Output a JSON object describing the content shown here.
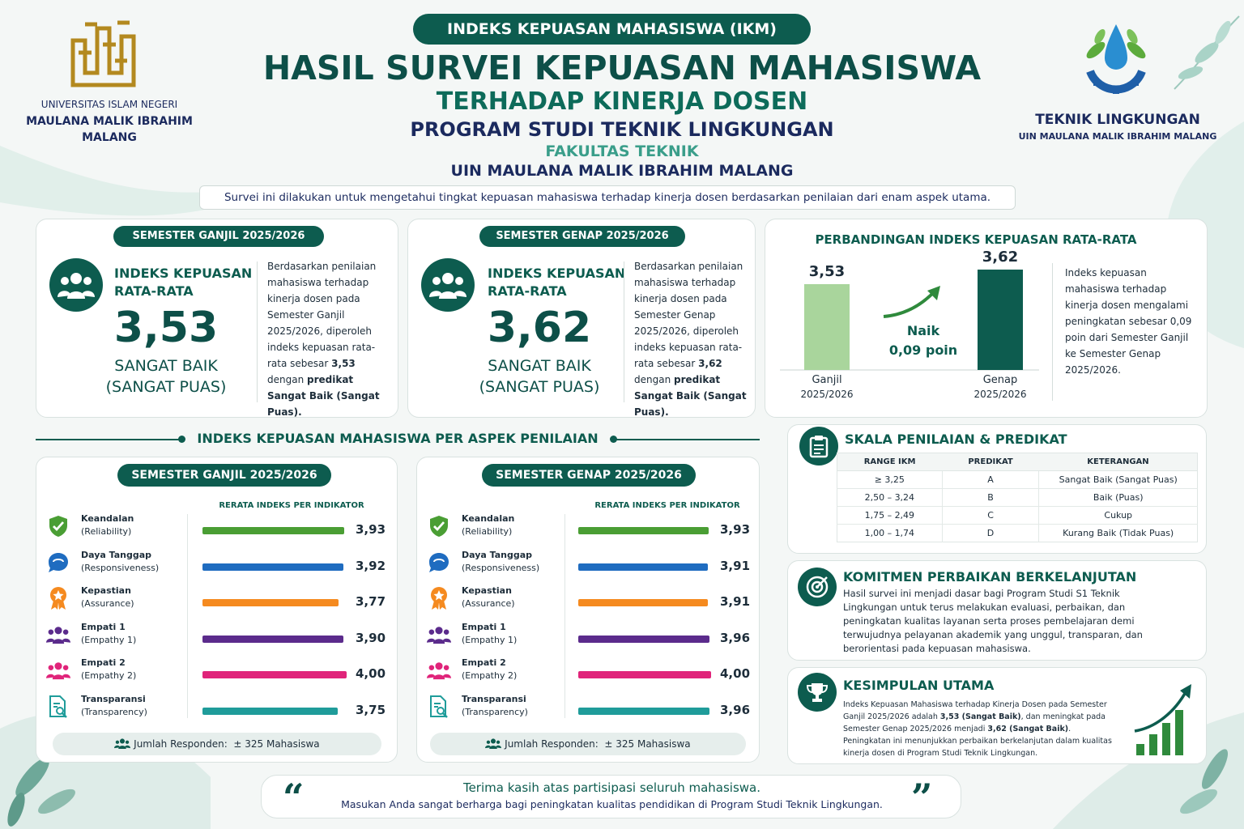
{
  "colors": {
    "primary": "#0d5c4f",
    "navy": "#1b2a5e",
    "teal_light": "#3a9e8a",
    "green": "#4a9e34",
    "blue": "#1f6cc0",
    "orange": "#f58a1f",
    "purple": "#5b2b8c",
    "pink": "#e0247a",
    "cyan": "#1f9c9a",
    "bar_ganjil": "#a9d59c"
  },
  "header": {
    "pill": "INDEKS KEPUASAN MAHASISWA (IKM)",
    "title1": "HASIL SURVEI KEPUASAN MAHASISWA",
    "title2": "TERHADAP KINERJA DOSEN",
    "title3": "PROGRAM STUDI TEKNIK LINGKUNGAN",
    "title4": "FAKULTAS TEKNIK",
    "title5": "UIN MAULANA MALIK IBRAHIM MALANG",
    "intro": "Survei ini dilakukan untuk mengetahui tingkat kepuasan mahasiswa terhadap kinerja dosen berdasarkan penilaian dari enam aspek utama."
  },
  "logo_left": {
    "line1": "UNIVERSITAS ISLAM NEGERI",
    "line2": "MAULANA MALIK IBRAHIM",
    "line3": "MALANG",
    "icon": "uin-calligraphy-logo"
  },
  "logo_right": {
    "line1": "TEKNIK LINGKUNGAN",
    "line2": "UIN MAULANA MALIK IBRAHIM MALANG",
    "icon": "water-drop-gear-logo"
  },
  "ganjil": {
    "pill": "SEMESTER GANJIL 2025/2026",
    "label1": "INDEKS KEPUASAN",
    "label2": "RATA-RATA",
    "value": "3,53",
    "predicate1": "SANGAT BAIK",
    "predicate2": "(SANGAT PUAS)",
    "desc_pre": "Berdasarkan penilaian mahasiswa terhadap kinerja dosen pada Semester Ganjil 2025/2026, diperoleh indeks kepuasan rata-rata sebesar ",
    "desc_val": "3,53",
    "desc_mid": " dengan ",
    "desc_bold": "predikat Sangat Baik (Sangat Puas)."
  },
  "genap": {
    "pill": "SEMESTER GENAP 2025/2026",
    "label1": "INDEKS KEPUASAN",
    "label2": "RATA-RATA",
    "value": "3,62",
    "predicate1": "SANGAT BAIK",
    "predicate2": "(SANGAT PUAS)",
    "desc_pre": "Berdasarkan penilaian mahasiswa terhadap kinerja dosen pada Semester Genap 2025/2026, diperoleh indeks kepuasan rata-rata sebesar ",
    "desc_val": "3,62",
    "desc_mid": " dengan ",
    "desc_bold": "predikat Sangat Baik (Sangat Puas)."
  },
  "comparison": {
    "title": "PERBANDINGAN INDEKS KEPUASAN RATA-RATA",
    "naik1": "Naik",
    "naik2": "0,09 poin",
    "desc": "Indeks kepuasan mahasiswa terhadap kinerja dosen mengalami peningkatan sebesar 0,09 poin dari Semester Ganjil ke Semester Genap 2025/2026."
  },
  "chart_data": [
    {
      "type": "bar",
      "categories": [
        "Ganjil 2025/2026",
        "Genap 2025/2026"
      ],
      "values": [
        3.53,
        3.62
      ],
      "value_labels": [
        "3,53",
        "3,62"
      ],
      "cat_line1": [
        "Ganjil",
        "Genap"
      ],
      "cat_line2": [
        "2025/2026",
        "2025/2026"
      ]
    },
    {
      "type": "bar",
      "title": "RERATA INDEKS PER INDIKATOR",
      "categories": [
        "Keandalan (Reliability)",
        "Daya Tanggap (Responsiveness)",
        "Kepastian (Assurance)",
        "Empati 1 (Empathy 1)",
        "Empati 2 (Empathy 2)",
        "Transparansi (Transparency)"
      ],
      "values": [
        3.93,
        3.92,
        3.77,
        3.9,
        4.0,
        3.75
      ],
      "value_labels": [
        "3,93",
        "3,92",
        "3,77",
        "3,90",
        "4,00",
        "3,75"
      ]
    },
    {
      "type": "bar",
      "title": "RERATA INDEKS PER INDIKATOR",
      "categories": [
        "Keandalan (Reliability)",
        "Daya Tanggap (Responsiveness)",
        "Kepastian (Assurance)",
        "Empati 1 (Empathy 1)",
        "Empati 2 (Empathy 2)",
        "Transparansi (Transparency)"
      ],
      "values": [
        3.93,
        3.91,
        3.91,
        3.96,
        4.0,
        3.96
      ],
      "value_labels": [
        "3,93",
        "3,91",
        "3,91",
        "3,96",
        "4,00",
        "3,96"
      ]
    }
  ],
  "aspects_section": {
    "title": "INDEKS KEPUASAN MAHASISWA PER ASPEK PENILAIAN",
    "ganjil_pill": "SEMESTER GANJIL 2025/2026",
    "genap_pill": "SEMESTER GENAP 2025/2026",
    "header": "RERATA INDEKS PER INDIKATOR",
    "respondents_label": "Jumlah Responden:",
    "respondents_value": "± 325 Mahasiswa"
  },
  "aspects": [
    {
      "name": "Keandalan",
      "en": "(Reliability)",
      "icon": "shield-check-icon",
      "color": "#4a9e34"
    },
    {
      "name": "Daya Tanggap",
      "en": "(Responsiveness)",
      "icon": "chat-bubble-icon",
      "color": "#1f6cc0"
    },
    {
      "name": "Kepastian",
      "en": "(Assurance)",
      "icon": "award-badge-icon",
      "color": "#f58a1f"
    },
    {
      "name": "Empati 1",
      "en": "(Empathy 1)",
      "icon": "people-icon",
      "color": "#5b2b8c"
    },
    {
      "name": "Empati 2",
      "en": "(Empathy 2)",
      "icon": "people-icon",
      "color": "#e0247a"
    },
    {
      "name": "Transparansi",
      "en": "(Transparency)",
      "icon": "document-search-icon",
      "color": "#1f9c9a"
    }
  ],
  "scale": {
    "title": "SKALA PENILAIAN & PREDIKAT",
    "headers": [
      "RANGE IKM",
      "PREDIKAT",
      "KETERANGAN"
    ],
    "rows": [
      [
        "≥ 3,25",
        "A",
        "Sangat Baik (Sangat Puas)"
      ],
      [
        "2,50 – 3,24",
        "B",
        "Baik (Puas)"
      ],
      [
        "1,75 – 2,49",
        "C",
        "Cukup"
      ],
      [
        "1,00 – 1,74",
        "D",
        "Kurang Baik (Tidak Puas)"
      ]
    ]
  },
  "commitment": {
    "title": "KOMITMEN PERBAIKAN BERKELANJUTAN",
    "text": "Hasil survei ini menjadi dasar bagi Program Studi S1 Teknik Lingkungan untuk terus melakukan evaluasi, perbaikan, dan peningkatan kualitas layanan serta proses pembelajaran demi terwujudnya pelayanan akademik yang unggul, transparan, dan berorientasi pada kepuasan mahasiswa."
  },
  "conclusion": {
    "title": "KESIMPULAN UTAMA",
    "t1": "Indeks Kepuasan Mahasiswa terhadap Kinerja Dosen pada Semester Ganjil 2025/2026 adalah ",
    "b1": "3,53 (Sangat Baik)",
    "t2": ", dan meningkat pada Semester Genap 2025/2026 menjadi ",
    "b2": "3,62 (Sangat Baik)",
    "t3": ". Peningkatan ini menunjukkan perbaikan berkelanjutan dalam kualitas kinerja dosen di Program Studi Teknik Lingkungan."
  },
  "footer": {
    "line1": "Terima kasih atas partisipasi seluruh mahasiswa.",
    "line2": "Masukan Anda sangat berharga bagi peningkatan kualitas pendidikan di Program Studi Teknik Lingkungan."
  }
}
